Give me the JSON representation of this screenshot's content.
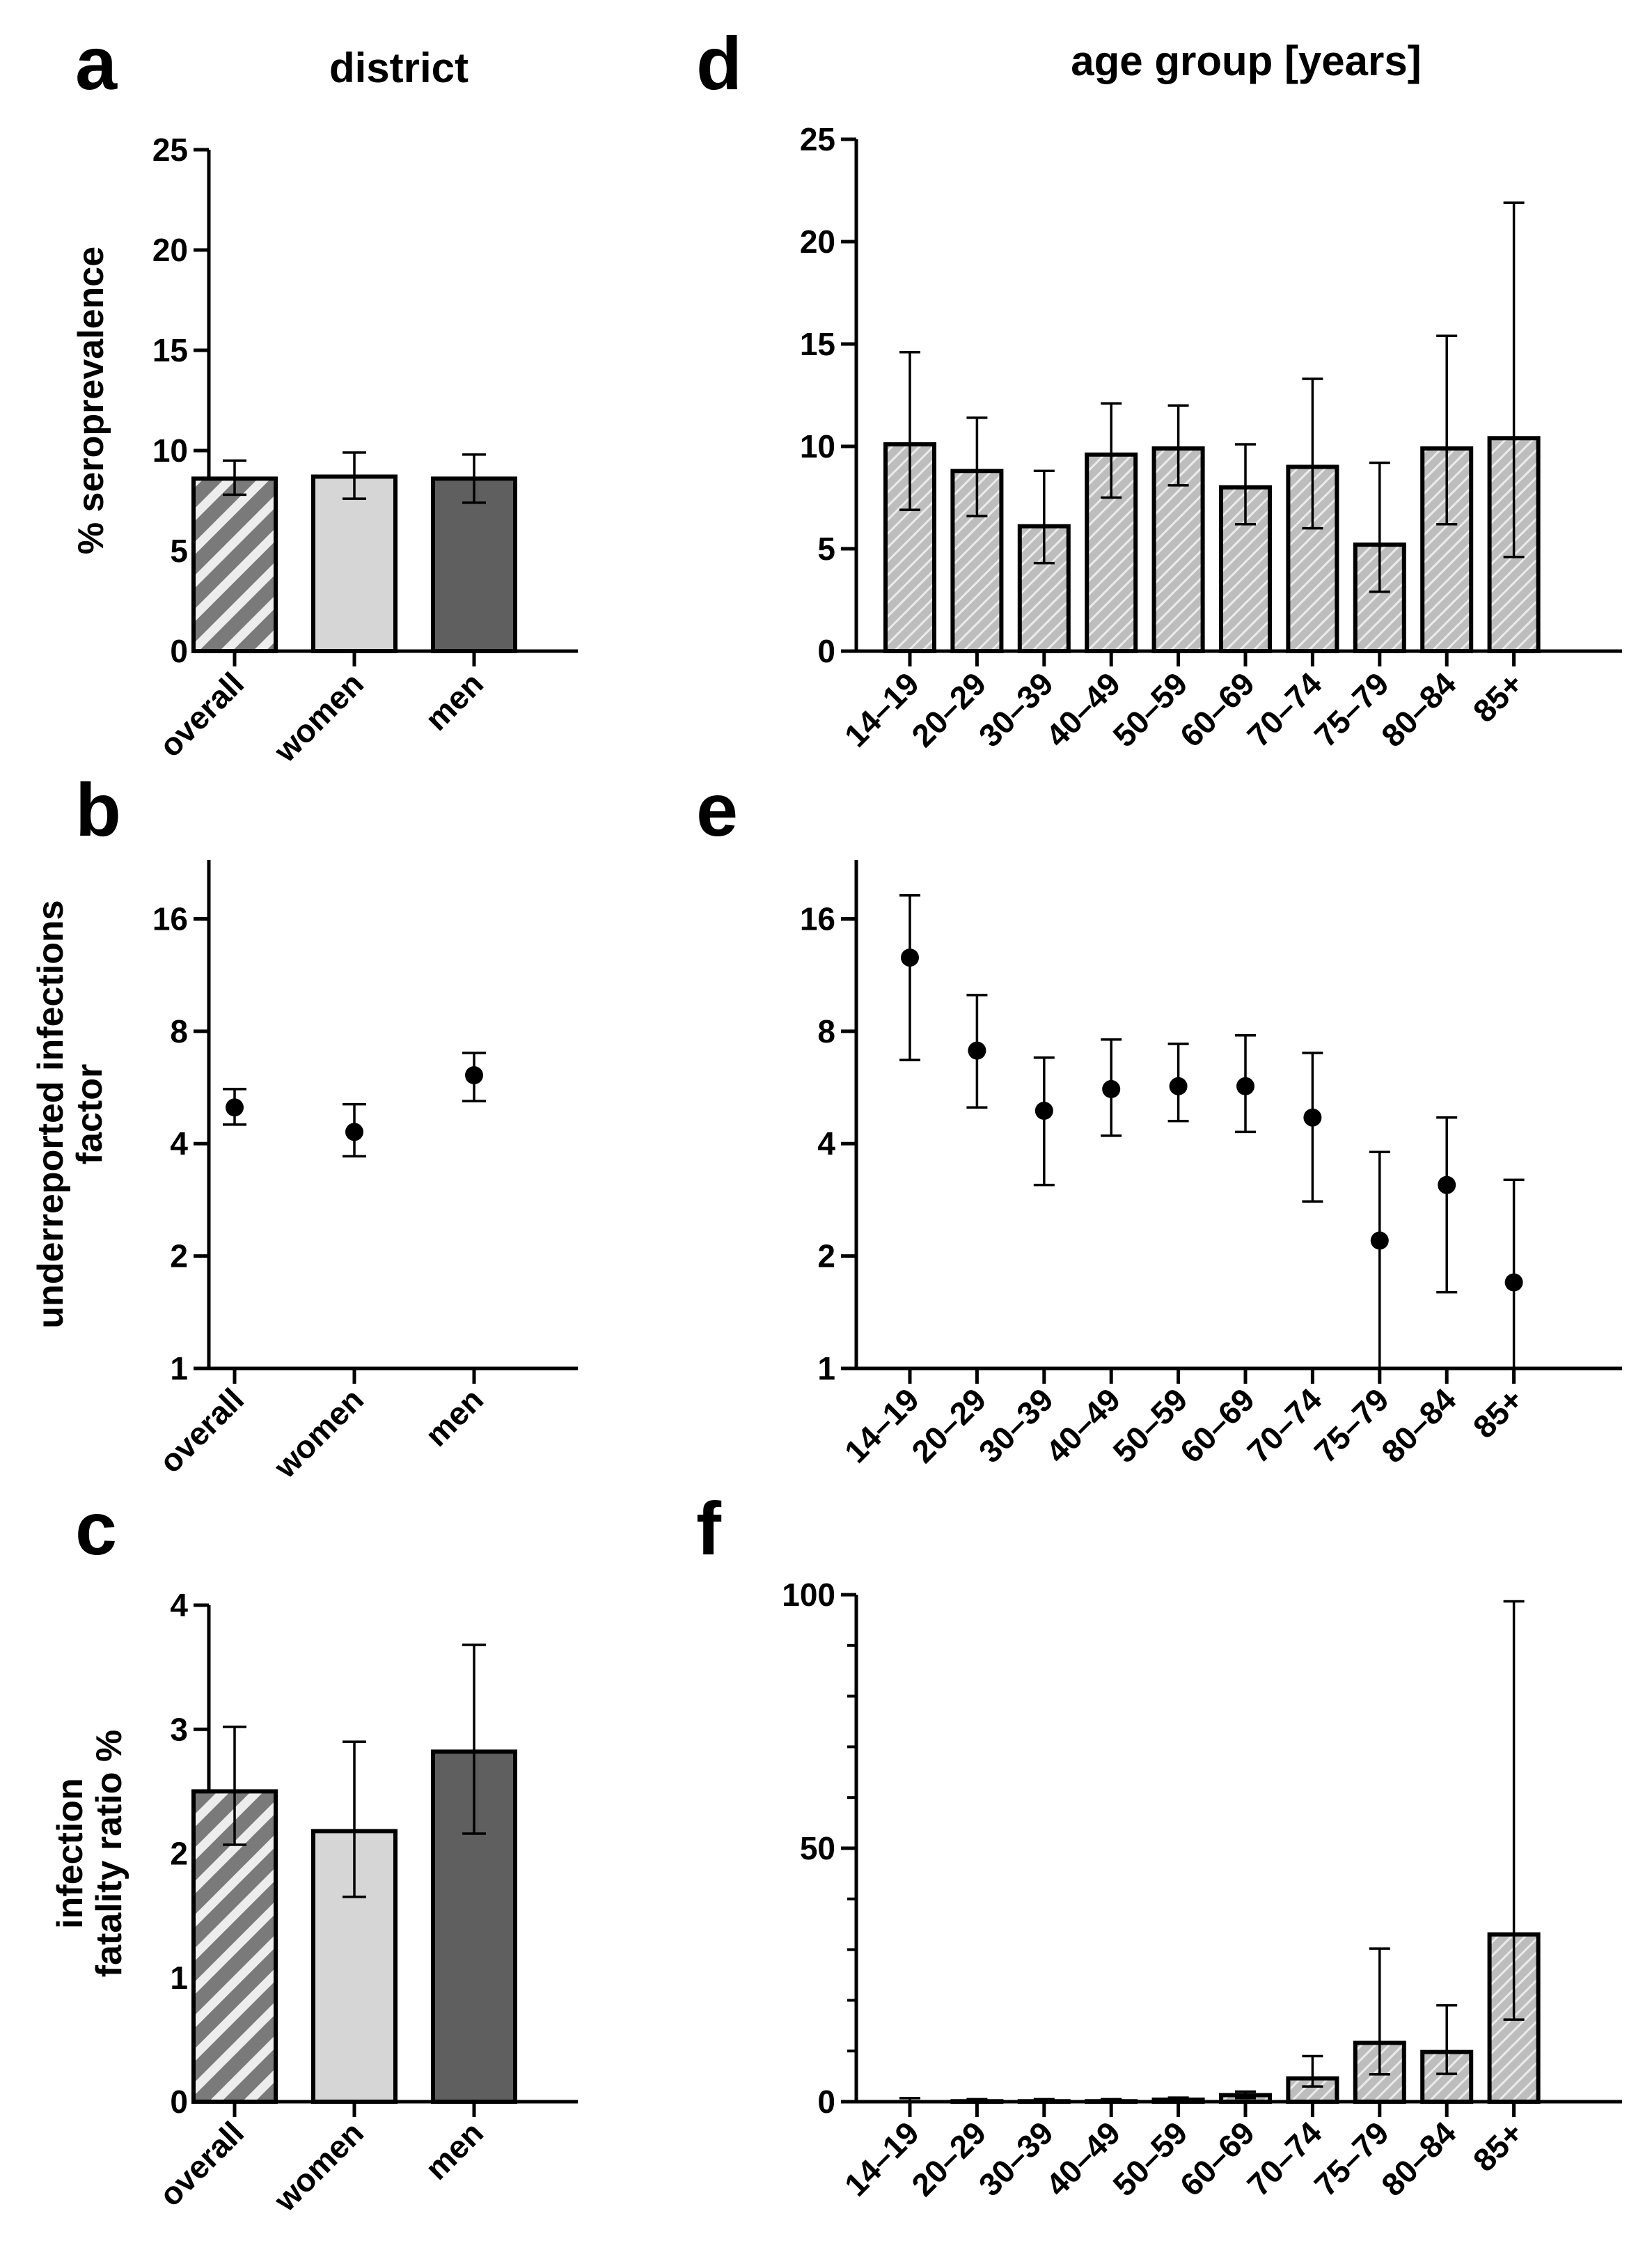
{
  "figure": {
    "column_titles": {
      "left": "district",
      "right": "age group [years]"
    },
    "colors": {
      "overall": "#7a7a7a",
      "women": "#d6d6d6",
      "men": "#5f5f5f",
      "age_bar": "#bdbdbd",
      "hatch": "#ffffff",
      "axis": "#000000"
    }
  },
  "chart_data": [
    {
      "id": "a",
      "panel_label": "a",
      "type": "bar",
      "title": "district",
      "ylabel": "% seroprevalence",
      "xlabel": "",
      "scale": "linear",
      "ylim": [
        0,
        25
      ],
      "yticks": [
        0,
        5,
        10,
        15,
        20,
        25
      ],
      "ytick_labels": [
        "0",
        "5",
        "10",
        "15",
        "20",
        "25"
      ],
      "categories": [
        "overall",
        "women",
        "men"
      ],
      "values": [
        8.6,
        8.7,
        8.6
      ],
      "err_low": [
        7.8,
        7.6,
        7.4
      ],
      "err_high": [
        9.5,
        9.9,
        9.8
      ],
      "fills": [
        "hatched-dark",
        "light",
        "dark"
      ]
    },
    {
      "id": "b",
      "panel_label": "b",
      "type": "scatter",
      "title": "",
      "ylabel": "underreported infections factor",
      "ylabel_lines": [
        "underreported infections",
        "factor"
      ],
      "xlabel": "",
      "scale": "log2",
      "ylim": [
        1,
        23
      ],
      "yticks": [
        1,
        2,
        4,
        8,
        16
      ],
      "ytick_labels": [
        "1",
        "2",
        "4",
        "8",
        "16"
      ],
      "categories": [
        "overall",
        "women",
        "men"
      ],
      "values": [
        5.0,
        4.3,
        6.1
      ],
      "err_low": [
        4.5,
        3.7,
        5.2
      ],
      "err_high": [
        5.6,
        5.1,
        7.0
      ]
    },
    {
      "id": "c",
      "panel_label": "c",
      "type": "bar",
      "title": "",
      "ylabel": "infection fatality ratio %",
      "ylabel_lines": [
        "infection",
        "fatality ratio %"
      ],
      "xlabel": "",
      "scale": "linear",
      "ylim": [
        0,
        4
      ],
      "yticks": [
        0,
        1,
        2,
        3,
        4
      ],
      "ytick_labels": [
        "0",
        "1",
        "2",
        "3",
        "4"
      ],
      "categories": [
        "overall",
        "women",
        "men"
      ],
      "values": [
        2.5,
        2.18,
        2.82
      ],
      "err_low": [
        2.07,
        1.65,
        2.16
      ],
      "err_high": [
        3.02,
        2.9,
        3.68
      ],
      "fills": [
        "hatched-dark",
        "light",
        "dark"
      ]
    },
    {
      "id": "d",
      "panel_label": "d",
      "type": "bar",
      "title": "age group [years]",
      "ylabel": "",
      "xlabel": "",
      "scale": "linear",
      "ylim": [
        0,
        25
      ],
      "yticks": [
        0,
        5,
        10,
        15,
        20,
        25
      ],
      "ytick_labels": [
        "0",
        "5",
        "10",
        "15",
        "20",
        "25"
      ],
      "categories": [
        "14–19",
        "20–29",
        "30–39",
        "40–49",
        "50–59",
        "60–69",
        "70–74",
        "75–79",
        "80–84",
        "85+"
      ],
      "values": [
        10.1,
        8.8,
        6.1,
        9.6,
        9.9,
        8.0,
        9.0,
        5.2,
        9.9,
        10.4
      ],
      "err_low": [
        6.9,
        6.6,
        4.3,
        7.5,
        8.1,
        6.2,
        6.0,
        2.9,
        6.2,
        4.6
      ],
      "err_high": [
        14.6,
        11.4,
        8.8,
        12.1,
        12.0,
        10.1,
        13.3,
        9.2,
        15.4,
        21.9
      ],
      "fills": "hatched-light"
    },
    {
      "id": "e",
      "panel_label": "e",
      "type": "scatter",
      "title": "",
      "ylabel": "",
      "xlabel": "",
      "scale": "log2",
      "ylim": [
        1,
        23
      ],
      "yticks": [
        1,
        2,
        4,
        8,
        16
      ],
      "ytick_labels": [
        "1",
        "2",
        "4",
        "8",
        "16"
      ],
      "categories": [
        "14–19",
        "20–29",
        "30–39",
        "40–49",
        "50–59",
        "60–69",
        "70–74",
        "75–79",
        "80–84",
        "85+"
      ],
      "values": [
        12.6,
        7.1,
        4.9,
        5.6,
        5.7,
        5.7,
        4.7,
        2.2,
        3.1,
        1.7
      ],
      "err_low": [
        6.7,
        5.0,
        3.1,
        4.2,
        4.6,
        4.3,
        2.8,
        1.0,
        1.6,
        1.0
      ],
      "err_high": [
        18.5,
        10.0,
        6.8,
        7.6,
        7.4,
        7.8,
        7.0,
        3.8,
        4.7,
        3.2
      ]
    },
    {
      "id": "f",
      "panel_label": "f",
      "type": "bar",
      "title": "",
      "ylabel": "",
      "xlabel": "",
      "scale": "linear",
      "ylim": [
        0,
        100
      ],
      "yticks": [
        0,
        50,
        100
      ],
      "ytick_labels": [
        "0",
        "50",
        "100"
      ],
      "minor_step": 10,
      "categories": [
        "14–19",
        "20–29",
        "30–39",
        "40–49",
        "50–59",
        "60–69",
        "70–74",
        "75–79",
        "80–84",
        "85+"
      ],
      "values": [
        0.0,
        0.1,
        0.1,
        0.1,
        0.4,
        1.3,
        4.6,
        11.6,
        9.8,
        33.0
      ],
      "err_low": [
        0.0,
        0.0,
        0.0,
        0.0,
        0.2,
        0.7,
        3.0,
        5.4,
        5.5,
        16.2
      ],
      "err_high": [
        0.7,
        0.5,
        0.5,
        0.5,
        0.8,
        2.0,
        9.0,
        30.2,
        19.0,
        98.7
      ],
      "fills": "hatched-light"
    }
  ]
}
